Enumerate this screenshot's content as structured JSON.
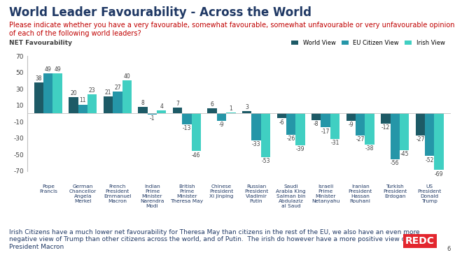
{
  "chart_data": {
    "type": "bar",
    "title": "World Leader Favourability - Across the World",
    "subtitle": "Please indicate whether you have a very favourable, somewhat favourable, somewhat unfavourable or very unfavourable opinion of each of the following world leaders?",
    "y_label": "NET Favourability",
    "categories": [
      "Pope Francis",
      "German Chancellor Angela Merkel",
      "French President Emmanuel Macron",
      "Indian Prime Minister Narendra Modi",
      "British Prime Minister Theresa May",
      "Chinese President Xi Jinping",
      "Russian President Vladimir Putin",
      "Saudi Arabia King Salman bin Abdulaziz al Saud",
      "Israeli Prime Minister Netanyahu",
      "Iranian President Hassan Rouhani",
      "Turkish President Erdogan",
      "US President Donald Trump"
    ],
    "series": [
      {
        "name": "World View",
        "color": "#1d5a66",
        "values": [
          38,
          20,
          21,
          8,
          7,
          6,
          3,
          -6,
          -8,
          -9,
          -12,
          -27
        ]
      },
      {
        "name": "EU Citizen View",
        "color": "#2596a8",
        "values": [
          49,
          11,
          27,
          -1,
          -13,
          -9,
          -33,
          -26,
          -17,
          -27,
          -56,
          -52
        ]
      },
      {
        "name": "Irish View",
        "color": "#40cfc2",
        "values": [
          49,
          23,
          40,
          4,
          -46,
          1,
          -53,
          -39,
          -31,
          -38,
          -45,
          -69
        ]
      }
    ],
    "ylim": [
      -70,
      70
    ],
    "yticks": [
      70,
      50,
      30,
      10,
      -10,
      -30,
      -50,
      -70
    ],
    "data_labels": true,
    "grid": false,
    "legend": "upper right",
    "footnote": "Irish Citizens have a much lower net favourability for Theresa May than citizens in the rest of the EU, we also have an even more negative view of Trump than other citizens across the world, and of Putin.  The irish do however have a more positive view of French President Macron",
    "logo": "REDC",
    "page_number": 6
  }
}
